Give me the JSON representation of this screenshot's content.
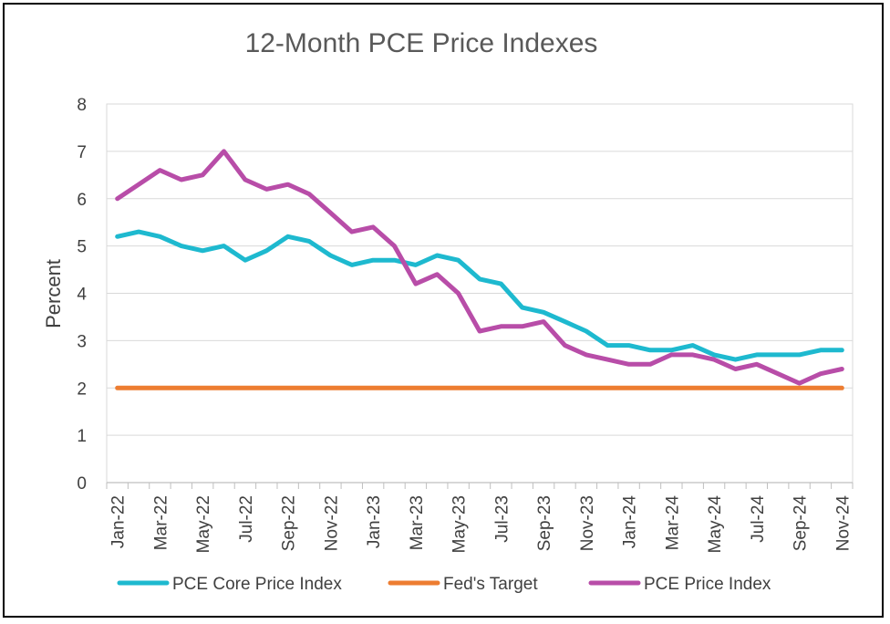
{
  "chart_data": {
    "type": "line",
    "title": "12-Month PCE Price Indexes",
    "xlabel": "",
    "ylabel": "Percent",
    "ylim": [
      0,
      8
    ],
    "yticks": [
      "0",
      "1",
      "2",
      "3",
      "4",
      "5",
      "6",
      "7",
      "8"
    ],
    "grid": "horizontal",
    "legend": "bottom",
    "categories": [
      "Jan-22",
      "Feb-22",
      "Mar-22",
      "Apr-22",
      "May-22",
      "Jun-22",
      "Jul-22",
      "Aug-22",
      "Sep-22",
      "Oct-22",
      "Nov-22",
      "Dec-22",
      "Jan-23",
      "Feb-23",
      "Mar-23",
      "Apr-23",
      "May-23",
      "Jun-23",
      "Jul-23",
      "Aug-23",
      "Sep-23",
      "Oct-23",
      "Nov-23",
      "Dec-23",
      "Jan-24",
      "Feb-24",
      "Mar-24",
      "Apr-24",
      "May-24",
      "Jun-24",
      "Jul-24",
      "Aug-24",
      "Sep-24",
      "Oct-24",
      "Nov-24"
    ],
    "tick_labels": [
      "Jan-22",
      "Mar-22",
      "May-22",
      "Jul-22",
      "Sep-22",
      "Nov-22",
      "Jan-23",
      "Mar-23",
      "May-23",
      "Jul-23",
      "Sep-23",
      "Nov-23",
      "Jan-24",
      "Mar-24",
      "May-24",
      "Jul-24",
      "Sep-24",
      "Nov-24"
    ],
    "series": [
      {
        "name": "PCE Core Price Index",
        "color": "#1EB9CF",
        "values": [
          5.2,
          5.3,
          5.2,
          5.0,
          4.9,
          5.0,
          4.7,
          4.9,
          5.2,
          5.1,
          4.8,
          4.6,
          4.7,
          4.7,
          4.6,
          4.8,
          4.7,
          4.3,
          4.2,
          3.7,
          3.6,
          3.4,
          3.2,
          2.9,
          2.9,
          2.8,
          2.8,
          2.9,
          2.7,
          2.6,
          2.7,
          2.7,
          2.7,
          2.8,
          2.8
        ]
      },
      {
        "name": "Fed's Target",
        "color": "#ED7D31",
        "values": [
          2,
          2,
          2,
          2,
          2,
          2,
          2,
          2,
          2,
          2,
          2,
          2,
          2,
          2,
          2,
          2,
          2,
          2,
          2,
          2,
          2,
          2,
          2,
          2,
          2,
          2,
          2,
          2,
          2,
          2,
          2,
          2,
          2,
          2,
          2
        ]
      },
      {
        "name": "PCE Price Index",
        "color": "#B84DA8",
        "values": [
          6.0,
          6.3,
          6.6,
          6.4,
          6.5,
          7.0,
          6.4,
          6.2,
          6.3,
          6.1,
          5.7,
          5.3,
          5.4,
          5.0,
          4.2,
          4.4,
          4.0,
          3.2,
          3.3,
          3.3,
          3.4,
          2.9,
          2.7,
          2.6,
          2.5,
          2.5,
          2.7,
          2.7,
          2.6,
          2.4,
          2.5,
          2.3,
          2.1,
          2.3,
          2.4
        ]
      }
    ]
  }
}
